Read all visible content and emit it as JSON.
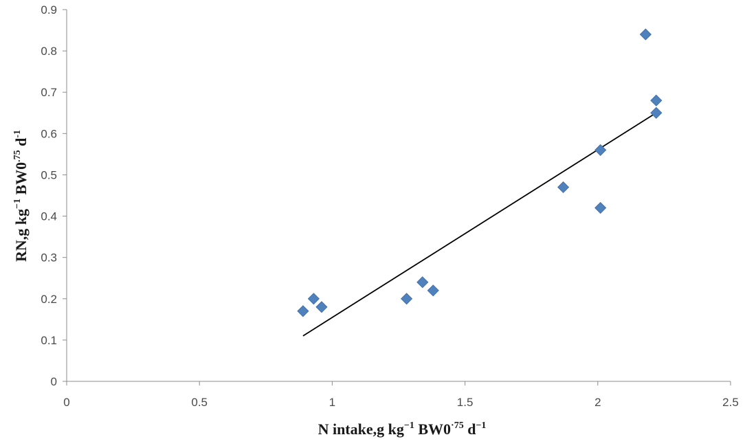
{
  "chart_data": {
    "type": "scatter",
    "xlabel": {
      "parts": [
        "N intake,g kg",
        "−1",
        "  BW0",
        "·75",
        " d",
        "−1"
      ]
    },
    "ylabel": {
      "parts": [
        "RN,g  kg",
        "−1",
        "  BW0",
        ".75",
        " d",
        "-1"
      ]
    },
    "xlim": [
      0,
      2.5
    ],
    "ylim": [
      0,
      0.9
    ],
    "xticks": [
      0,
      0.5,
      1,
      1.5,
      2,
      2.5
    ],
    "xtick_labels": [
      "0",
      "0.5",
      "1",
      "1.5",
      "2",
      "2.5"
    ],
    "yticks": [
      0,
      0.1,
      0.2,
      0.3,
      0.4,
      0.5,
      0.6,
      0.7,
      0.8,
      0.9
    ],
    "ytick_labels": [
      "0",
      "0.1",
      "0.2",
      "0.3",
      "0.4",
      "0.5",
      "0.6",
      "0.7",
      "0.8",
      "0.9"
    ],
    "grid": false,
    "series": [
      {
        "marker": "diamond",
        "color": "#4f81bd",
        "points": [
          {
            "x": 0.89,
            "y": 0.17
          },
          {
            "x": 0.93,
            "y": 0.2
          },
          {
            "x": 0.96,
            "y": 0.18
          },
          {
            "x": 1.28,
            "y": 0.2
          },
          {
            "x": 1.34,
            "y": 0.24
          },
          {
            "x": 1.38,
            "y": 0.22
          },
          {
            "x": 1.87,
            "y": 0.47
          },
          {
            "x": 2.01,
            "y": 0.56
          },
          {
            "x": 2.01,
            "y": 0.42
          },
          {
            "x": 2.18,
            "y": 0.84
          },
          {
            "x": 2.22,
            "y": 0.68
          },
          {
            "x": 2.22,
            "y": 0.65
          }
        ]
      }
    ],
    "trendline": {
      "type": "linear",
      "color": "#000000",
      "from": {
        "x": 0.89,
        "y": 0.11
      },
      "to": {
        "x": 2.22,
        "y": 0.65
      }
    }
  }
}
